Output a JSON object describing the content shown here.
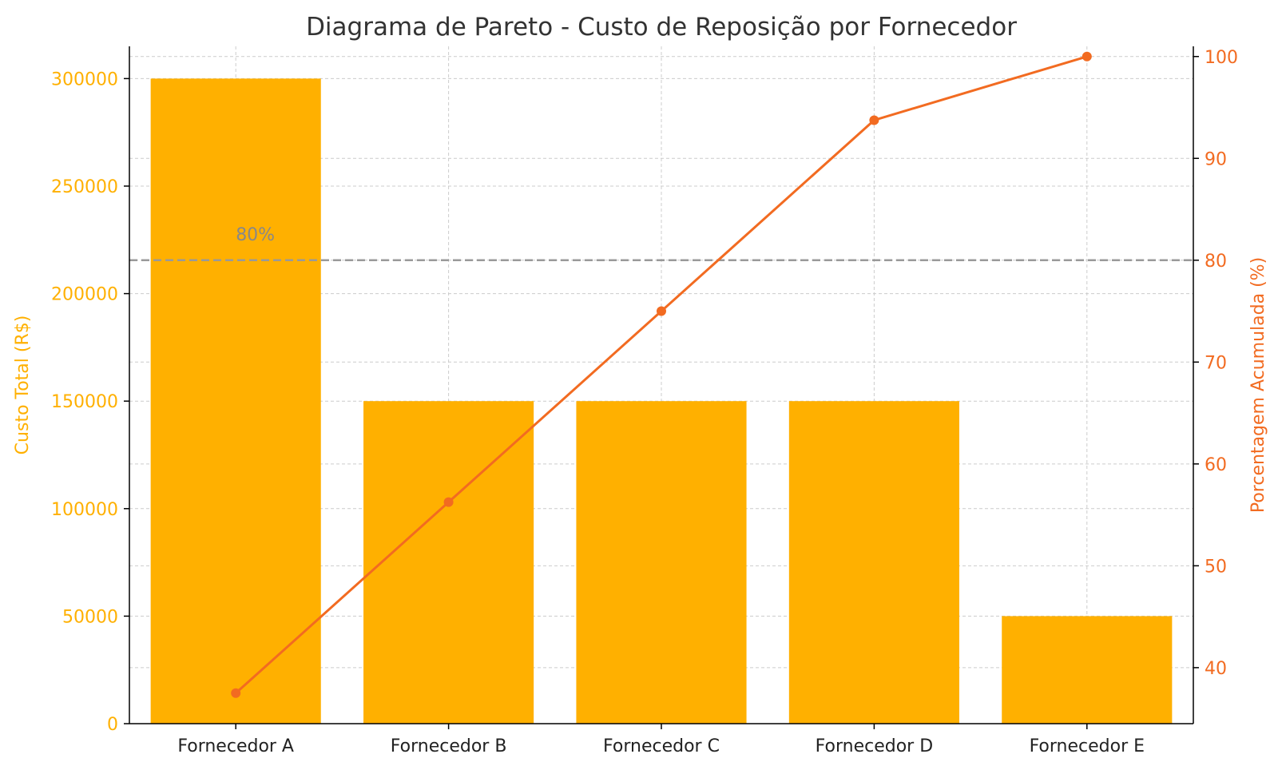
{
  "chart_data": {
    "type": "bar",
    "title": "Diagrama de Pareto - Custo de Reposição por Fornecedor",
    "categories": [
      "Fornecedor A",
      "Fornecedor B",
      "Fornecedor C",
      "Fornecedor D",
      "Fornecedor E"
    ],
    "series": [
      {
        "type": "bar",
        "axis": "left",
        "values": [
          300000,
          150000,
          150000,
          150000,
          50000
        ],
        "color": "#FFB000"
      },
      {
        "type": "line",
        "axis": "right",
        "values": [
          37.5,
          56.25,
          75.0,
          93.75,
          100.0
        ],
        "color": "#F26B21"
      }
    ],
    "y_left": {
      "label": "Custo Total (R$)",
      "range": [
        0,
        315000
      ],
      "ticks": [
        0,
        50000,
        100000,
        150000,
        200000,
        250000,
        300000
      ],
      "color": "#FFB000"
    },
    "y_right": {
      "label": "Porcentagem Acumulada (%)",
      "range": [
        34.5,
        101.0
      ],
      "ticks": [
        40,
        50,
        60,
        70,
        80,
        90,
        100
      ],
      "color": "#F26B21"
    },
    "reference_line": {
      "axis": "right",
      "value": 80,
      "label": "80%",
      "color": "#999999"
    },
    "grid": true
  }
}
